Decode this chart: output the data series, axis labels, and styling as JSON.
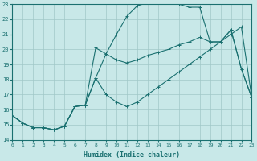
{
  "xlabel": "Humidex (Indice chaleur)",
  "bg_color": "#c8e8e8",
  "grid_color": "#a0c8c8",
  "line_color": "#1a7070",
  "xlim": [
    0,
    23
  ],
  "ylim": [
    14,
    23
  ],
  "xticks": [
    0,
    1,
    2,
    3,
    4,
    5,
    6,
    7,
    8,
    9,
    10,
    11,
    12,
    13,
    14,
    15,
    16,
    17,
    18,
    19,
    20,
    21,
    22,
    23
  ],
  "yticks": [
    14,
    15,
    16,
    17,
    18,
    19,
    20,
    21,
    22,
    23
  ],
  "curve1_x": [
    0,
    1,
    2,
    3,
    4,
    5,
    6,
    7,
    8,
    9,
    10,
    11,
    12,
    13,
    14,
    15,
    16,
    17,
    18,
    19,
    20,
    21,
    22,
    23
  ],
  "curve1_y": [
    15.6,
    15.1,
    14.8,
    14.8,
    14.65,
    14.9,
    16.2,
    16.3,
    20.1,
    19.7,
    19.3,
    19.1,
    19.3,
    19.6,
    19.8,
    20.0,
    20.3,
    20.5,
    20.8,
    20.5,
    20.5,
    21.3,
    18.7,
    16.8
  ],
  "curve2_x": [
    0,
    1,
    2,
    3,
    4,
    5,
    6,
    7,
    8,
    9,
    10,
    11,
    12,
    13,
    14,
    15,
    16,
    17,
    18,
    19,
    20,
    21,
    22,
    23
  ],
  "curve2_y": [
    15.6,
    15.1,
    14.8,
    14.8,
    14.65,
    14.9,
    16.2,
    16.3,
    18.1,
    19.7,
    21.0,
    22.2,
    22.9,
    23.1,
    23.1,
    23.0,
    23.0,
    22.8,
    22.8,
    20.5,
    20.5,
    21.3,
    18.7,
    16.8
  ],
  "curve3_x": [
    0,
    1,
    2,
    3,
    4,
    5,
    6,
    7,
    8,
    9,
    10,
    11,
    12,
    13,
    14,
    15,
    16,
    17,
    18,
    19,
    20,
    21,
    22,
    23
  ],
  "curve3_y": [
    15.6,
    15.1,
    14.8,
    14.8,
    14.65,
    14.9,
    16.2,
    16.3,
    18.1,
    17.0,
    16.5,
    16.2,
    16.5,
    17.0,
    17.5,
    18.0,
    18.5,
    19.0,
    19.5,
    20.0,
    20.5,
    21.0,
    21.5,
    16.8
  ]
}
